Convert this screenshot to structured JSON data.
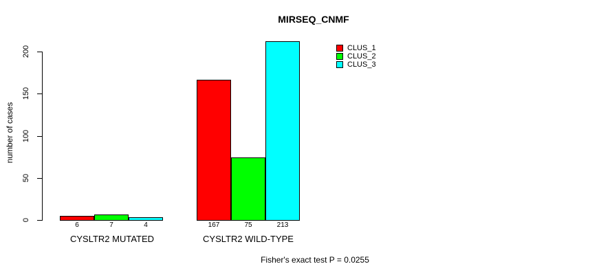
{
  "title": "MIRSEQ_CNMF",
  "y_axis": {
    "label": "number of cases",
    "ticks": [
      "0",
      "50",
      "100",
      "150",
      "200"
    ]
  },
  "chart_data": {
    "type": "bar",
    "title": "MIRSEQ_CNMF",
    "xlabel": "",
    "ylabel": "number of cases",
    "ylim": [
      0,
      213
    ],
    "y_ticks": [
      0,
      50,
      100,
      150,
      200
    ],
    "grid": false,
    "legend_position": "top-right",
    "categories": [
      "CYSLTR2 MUTATED",
      "CYSLTR2 WILD-TYPE"
    ],
    "series": [
      {
        "name": "CLUS_1",
        "color": "#ff0000",
        "values": [
          6,
          167
        ]
      },
      {
        "name": "CLUS_2",
        "color": "#00ff00",
        "values": [
          7,
          75
        ]
      },
      {
        "name": "CLUS_3",
        "color": "#00ffff",
        "values": [
          4,
          213
        ]
      }
    ],
    "annotation": "Fisher's exact test P = 0.0255"
  },
  "footer": "Fisher's exact test P = 0.0255"
}
